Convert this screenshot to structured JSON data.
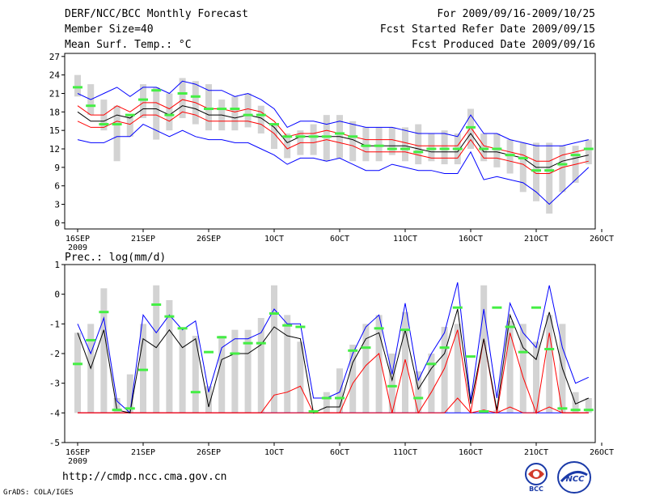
{
  "header": {
    "title": "DERF/NCC/BCC Monthly Forecast",
    "member": "Member Size=40",
    "variable": "Mean Surf. Temp.: °C",
    "period": "For 2009/09/16-2009/10/25",
    "started": "Fcst Started Refer Date 2009/09/15",
    "produced": "Fcst Produced Date 2009/09/16"
  },
  "footer": {
    "url": "http://cmdp.ncc.cma.gov.cn",
    "grads": "GrADS: COLA/IGES",
    "logo1": "BCC",
    "logo2": "NCC"
  },
  "colors": {
    "mean": "#000000",
    "spread": "#ff0000",
    "range": "#0000ff",
    "obs": "#44ee44",
    "box": "#d3d3d3"
  },
  "chart_data": [
    {
      "type": "line",
      "title": "Mean Surf. Temp.: °C",
      "ylim": [
        -1,
        27.5
      ],
      "yticks": [
        0,
        3,
        6,
        9,
        12,
        15,
        18,
        21,
        24,
        27
      ],
      "xtick_days": [
        0,
        5,
        10,
        15,
        20,
        25,
        30,
        35,
        40
      ],
      "xtick_labels": [
        "16SEP",
        "21SEP",
        "26SEP",
        "1OCT",
        "6OCT",
        "11OCT",
        "16OCT",
        "21OCT",
        "26OCT"
      ],
      "year_label": "2009",
      "x_days": [
        0,
        1,
        2,
        3,
        4,
        5,
        6,
        7,
        8,
        9,
        10,
        11,
        12,
        13,
        14,
        15,
        16,
        17,
        18,
        19,
        20,
        21,
        22,
        23,
        24,
        25,
        26,
        27,
        28,
        29,
        30,
        31,
        32,
        33,
        34,
        35,
        36,
        37,
        38,
        39
      ],
      "mean": [
        18,
        16.5,
        16.5,
        17.5,
        17,
        18.5,
        18.5,
        17.5,
        19,
        18.5,
        17.5,
        17.5,
        17,
        17.5,
        17,
        15.5,
        13,
        14,
        14,
        14,
        14,
        13.5,
        12.5,
        12.5,
        12.5,
        12.5,
        12,
        11.5,
        11.5,
        11.5,
        14.5,
        11.5,
        11.5,
        11,
        10.5,
        9,
        9,
        10,
        10.5,
        11
      ],
      "spread_upper": [
        19,
        17.5,
        17.5,
        19,
        18,
        19.5,
        19.5,
        18.5,
        20,
        19.5,
        18.5,
        18.5,
        18,
        18.5,
        18,
        16.5,
        14,
        14.5,
        14.5,
        15,
        14.5,
        14,
        13.5,
        13.5,
        13.5,
        13,
        12.5,
        12.5,
        12.5,
        12.5,
        15.5,
        12.5,
        12,
        11.5,
        11,
        10,
        10,
        11,
        11.5,
        12
      ],
      "spread_lower": [
        16.5,
        15.5,
        15.5,
        16.5,
        16,
        17.5,
        17.5,
        16.5,
        18,
        17.5,
        16.5,
        16.5,
        16.5,
        16.5,
        16,
        14.5,
        12,
        13,
        13,
        13.5,
        13,
        12.5,
        11.5,
        11.5,
        11.5,
        11.5,
        11,
        10.5,
        10.5,
        10.5,
        13.5,
        10.5,
        10.5,
        10,
        9.5,
        8,
        8,
        9,
        9.5,
        10
      ],
      "range_max": [
        21,
        20,
        21,
        22,
        20.5,
        22,
        22,
        21,
        23,
        22.5,
        21.5,
        21.5,
        20.5,
        21,
        20,
        18.5,
        15.5,
        16.5,
        16.5,
        16,
        16.5,
        16,
        15.5,
        15.5,
        15.5,
        15,
        14.5,
        14.5,
        14.5,
        14,
        17.5,
        14.5,
        14.5,
        13.5,
        13,
        12.5,
        12.5,
        12.5,
        13,
        13.5
      ],
      "range_min": [
        13.5,
        13,
        13,
        14,
        14,
        16,
        15,
        14,
        15,
        14,
        13.5,
        13.5,
        13,
        13,
        12,
        11,
        9.5,
        10.5,
        10.5,
        10,
        10.5,
        9.5,
        8.5,
        8.5,
        9.5,
        9,
        8.5,
        8.5,
        8,
        8,
        11.5,
        7,
        7.5,
        7,
        6.5,
        5,
        3,
        5,
        7,
        9
      ],
      "box_high": [
        24,
        22.5,
        20,
        19,
        17.5,
        22.5,
        22,
        21,
        23.5,
        23,
        22.5,
        20,
        20.5,
        21,
        19,
        16,
        14.5,
        15,
        16,
        17.5,
        17.5,
        16.5,
        15.5,
        15.5,
        15.5,
        15.5,
        16,
        14.5,
        15,
        14.5,
        18.5,
        14.5,
        14.5,
        13.5,
        13,
        13,
        13,
        12.5,
        12.5,
        13.5
      ],
      "box_low": [
        20.5,
        17.5,
        15,
        10,
        14,
        17,
        13.5,
        15,
        17,
        16,
        15,
        15,
        15,
        15.5,
        14.5,
        12,
        10.5,
        11,
        11,
        10,
        10.5,
        10,
        10,
        10,
        11,
        10,
        9.5,
        10,
        9.5,
        9.5,
        12,
        10,
        9,
        8,
        5,
        3.5,
        1.5,
        5,
        6.5,
        9.5
      ],
      "obs": [
        22,
        19,
        16,
        16,
        17.5,
        20,
        21.5,
        17.5,
        21,
        20.5,
        18.5,
        18.5,
        18.5,
        17.5,
        17.5,
        16,
        14,
        14,
        14,
        14,
        14.5,
        14,
        12.5,
        12.5,
        12,
        12,
        11.5,
        12,
        12,
        12,
        15.5,
        12,
        12,
        11,
        10.5,
        8.5,
        8.5,
        9.5,
        11,
        12
      ]
    },
    {
      "type": "line",
      "title": "Prec.: log(mm/d)",
      "ylim": [
        -5,
        1
      ],
      "yticks": [
        1,
        0,
        -1,
        -2,
        -3,
        -4,
        -5
      ],
      "xtick_days": [
        0,
        5,
        10,
        15,
        20,
        25,
        30,
        35,
        40
      ],
      "xtick_labels": [
        "16SEP",
        "21SEP",
        "26SEP",
        "1OCT",
        "6OCT",
        "11OCT",
        "16OCT",
        "21OCT",
        "26OCT"
      ],
      "year_label": "2009",
      "x_days": [
        0,
        1,
        2,
        3,
        4,
        5,
        6,
        7,
        8,
        9,
        10,
        11,
        12,
        13,
        14,
        15,
        16,
        17,
        18,
        19,
        20,
        21,
        22,
        23,
        24,
        25,
        26,
        27,
        28,
        29,
        30,
        31,
        32,
        33,
        34,
        35,
        36,
        37,
        38,
        39
      ],
      "mean": [
        -1.3,
        -2.5,
        -1.2,
        -3.9,
        -4,
        -1.5,
        -1.8,
        -1.2,
        -1.8,
        -1.5,
        -3.8,
        -2.2,
        -2,
        -2,
        -1.7,
        -1.1,
        -1.4,
        -1.5,
        -4,
        -3.8,
        -3.8,
        -2.3,
        -1.5,
        -1.3,
        -2.9,
        -1.2,
        -3.2,
        -2.5,
        -2,
        -0.5,
        -3.7,
        -1.5,
        -3.9,
        -0.7,
        -1.8,
        -2.2,
        -0.6,
        -2.5,
        -3.7,
        -3.5
      ],
      "spread_upper": [
        -4,
        -4,
        -4,
        -4,
        -4,
        -4,
        -4,
        -4,
        -4,
        -4,
        -4,
        -4,
        -4,
        -4,
        -4,
        -3.4,
        -3.3,
        -3.1,
        -4,
        -4,
        -4,
        -3,
        -2.4,
        -2,
        -4,
        -2.2,
        -4,
        -3.3,
        -2.5,
        -1.2,
        -4,
        -1.5,
        -4,
        -1.3,
        -2.8,
        -4,
        -1.3,
        -4,
        -4,
        -4
      ],
      "spread_lower": [
        -4,
        -4,
        -4,
        -4,
        -4,
        -4,
        -4,
        -4,
        -4,
        -4,
        -4,
        -4,
        -4,
        -4,
        -4,
        -4,
        -4,
        -4,
        -4,
        -4,
        -4,
        -4,
        -4,
        -4,
        -4,
        -4,
        -4,
        -4,
        -4,
        -3.5,
        -4,
        -3.9,
        -4,
        -3.8,
        -4,
        -4,
        -3.8,
        -4,
        -4,
        -4
      ],
      "range_max": [
        -1,
        -2,
        -0.8,
        -3.6,
        -4,
        -0.7,
        -1.3,
        -0.7,
        -1.2,
        -0.9,
        -3.3,
        -1.8,
        -1.5,
        -1.5,
        -1.3,
        -0.5,
        -1,
        -1,
        -3.5,
        -3.5,
        -3.3,
        -2,
        -1.1,
        -0.7,
        -2.7,
        -0.3,
        -2.9,
        -2,
        -1.3,
        0.4,
        -3.6,
        -0.5,
        -3.5,
        -0.3,
        -1.3,
        -1.8,
        0.3,
        -1.8,
        -3,
        -2.8
      ],
      "range_min": [
        -4,
        -4,
        -4,
        -4,
        -4,
        -4,
        -4,
        -4,
        -4,
        -4,
        -4,
        -4,
        -4,
        -4,
        -4,
        -4,
        -4,
        -4,
        -4,
        -4,
        -4,
        -4,
        -4,
        -4,
        -4,
        -4,
        -4,
        -4,
        -4,
        -4,
        -4,
        -4,
        -4,
        -4,
        -4,
        -4,
        -4,
        -4,
        -4,
        -4
      ],
      "box_high": [
        -1.3,
        -1,
        0.2,
        -3.5,
        -2.7,
        -1,
        0.3,
        -0.2,
        -1.2,
        -1.4,
        -3.1,
        -1.4,
        -1.2,
        -1.2,
        -0.8,
        0.3,
        -0.7,
        -1.6,
        -4,
        -3.3,
        -2.5,
        -1.7,
        -1,
        -0.7,
        -2,
        -0.6,
        -2.6,
        -2,
        -1.1,
        -1,
        -4,
        0.3,
        -3.9,
        -0.9,
        -1,
        -1.6,
        -0.7,
        -1,
        -3.3,
        -3.5
      ],
      "box_low": [
        -4,
        -4,
        -4,
        -4,
        -4,
        -4,
        -4,
        -4,
        -4,
        -4,
        -4,
        -4,
        -4,
        -4,
        -4,
        -4,
        -4,
        -4,
        -4,
        -4,
        -4,
        -4,
        -4,
        -4,
        -4,
        -4,
        -4,
        -4,
        -4,
        -4,
        -4,
        -4,
        -4,
        -4,
        -4,
        -4,
        -4,
        -4,
        -4,
        -4
      ],
      "obs": [
        -2.35,
        -1.55,
        -0.6,
        -3.9,
        -3.85,
        -2.55,
        -0.35,
        -0.75,
        -1.15,
        -3.3,
        -1.95,
        -1.45,
        -2,
        -1.65,
        -1.65,
        -0.65,
        -1.05,
        -1.1,
        -3.95,
        -3.5,
        -3.5,
        -1.9,
        -1.8,
        -1.15,
        -3.1,
        -1.2,
        -3.5,
        -2.35,
        -1.8,
        -0.45,
        -2.1,
        -3.95,
        -0.45,
        -1.1,
        -1.95,
        -0.45,
        -1.85,
        -3.85,
        -3.9,
        -3.9
      ]
    }
  ]
}
